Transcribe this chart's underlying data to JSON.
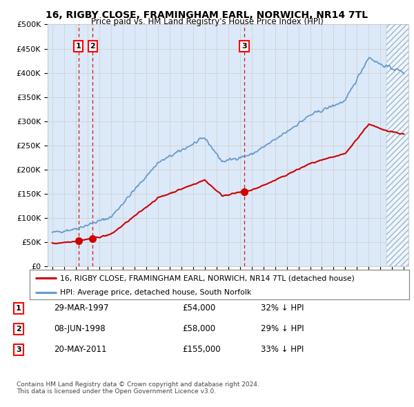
{
  "title": "16, RIGBY CLOSE, FRAMINGHAM EARL, NORWICH, NR14 7TL",
  "subtitle": "Price paid vs. HM Land Registry's House Price Index (HPI)",
  "ylim": [
    0,
    500000
  ],
  "yticks": [
    0,
    50000,
    100000,
    150000,
    200000,
    250000,
    300000,
    350000,
    400000,
    450000,
    500000
  ],
  "ytick_labels": [
    "£0",
    "£50K",
    "£100K",
    "£150K",
    "£200K",
    "£250K",
    "£300K",
    "£350K",
    "£400K",
    "£450K",
    "£500K"
  ],
  "background_color": "#ffffff",
  "plot_bg_color": "#dce9f8",
  "legend_line1": "16, RIGBY CLOSE, FRAMINGHAM EARL, NORWICH, NR14 7TL (detached house)",
  "legend_line2": "HPI: Average price, detached house, South Norfolk",
  "sale1_date": 1997.24,
  "sale1_price": 54000,
  "sale1_label": "1",
  "sale2_date": 1998.44,
  "sale2_price": 58000,
  "sale2_label": "2",
  "sale3_date": 2011.38,
  "sale3_price": 155000,
  "sale3_label": "3",
  "table_data": [
    [
      "1",
      "29-MAR-1997",
      "£54,000",
      "32% ↓ HPI"
    ],
    [
      "2",
      "08-JUN-1998",
      "£58,000",
      "29% ↓ HPI"
    ],
    [
      "3",
      "20-MAY-2011",
      "£155,000",
      "33% ↓ HPI"
    ]
  ],
  "footer1": "Contains HM Land Registry data © Crown copyright and database right 2024.",
  "footer2": "This data is licensed under the Open Government Licence v3.0.",
  "red_line_color": "#cc0000",
  "blue_line_color": "#6699cc",
  "plot_bg_color2": "#dce9f8",
  "marker_color": "#cc0000",
  "dashed_line_color": "#cc0000",
  "grid_color": "#cccccc",
  "hatch_color": "#aabbcc",
  "xlim_left": 1994.6,
  "xlim_right": 2025.4,
  "hatch_start": 2023.5
}
